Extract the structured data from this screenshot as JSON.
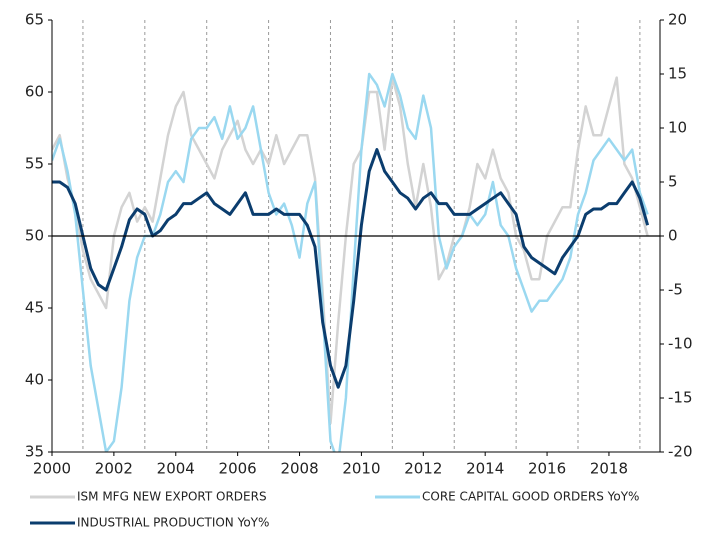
{
  "chart_data": {
    "type": "line",
    "x": [
      2000,
      2000.25,
      2000.5,
      2000.75,
      2001,
      2001.25,
      2001.5,
      2001.75,
      2002,
      2002.25,
      2002.5,
      2002.75,
      2003,
      2003.25,
      2003.5,
      2003.75,
      2004,
      2004.25,
      2004.5,
      2004.75,
      2005,
      2005.25,
      2005.5,
      2005.75,
      2006,
      2006.25,
      2006.5,
      2006.75,
      2007,
      2007.25,
      2007.5,
      2007.75,
      2008,
      2008.25,
      2008.5,
      2008.75,
      2009,
      2009.25,
      2009.5,
      2009.75,
      2010,
      2010.25,
      2010.5,
      2010.75,
      2011,
      2011.25,
      2011.5,
      2011.75,
      2012,
      2012.25,
      2012.5,
      2012.75,
      2013,
      2013.25,
      2013.5,
      2013.75,
      2014,
      2014.25,
      2014.5,
      2014.75,
      2015,
      2015.25,
      2015.5,
      2015.75,
      2016,
      2016.25,
      2016.5,
      2016.75,
      2017,
      2017.25,
      2017.5,
      2017.75,
      2018,
      2018.25,
      2018.5,
      2018.75,
      2019,
      2019.25
    ],
    "series": [
      {
        "name": "ISM MFG NEW EXPORT ORDERS",
        "color": "#d3d3d3",
        "axis": "y",
        "values": [
          56,
          57,
          54,
          52,
          49,
          47,
          46,
          45,
          50,
          52,
          53,
          51,
          52,
          51,
          54,
          57,
          59,
          60,
          57,
          56,
          55,
          54,
          56,
          57,
          58,
          56,
          55,
          56,
          55,
          57,
          55,
          56,
          57,
          57,
          54,
          46,
          37,
          44,
          50,
          55,
          56,
          60,
          60,
          56,
          61,
          59,
          55,
          52,
          55,
          52,
          47,
          48,
          50,
          50,
          52,
          55,
          54,
          56,
          54,
          53,
          50,
          49,
          47,
          47,
          50,
          51,
          52,
          52,
          56,
          59,
          57,
          57,
          59,
          61,
          55,
          54,
          52,
          50
        ]
      },
      {
        "name": "CORE CAPITAL GOOD ORDERS YoY%",
        "color": "#9ad8f0",
        "axis": "y2",
        "values": [
          7,
          9,
          6,
          2,
          -5,
          -12,
          -16,
          -20,
          -19,
          -14,
          -6,
          -2,
          0,
          0,
          2,
          5,
          6,
          5,
          9,
          10,
          10,
          11,
          9,
          12,
          9,
          10,
          12,
          8,
          4,
          2,
          3,
          1,
          -2,
          3,
          5,
          -7,
          -19,
          -21,
          -15,
          -3,
          8,
          15,
          14,
          12,
          15,
          13,
          10,
          9,
          13,
          10,
          0,
          -3,
          -1,
          0,
          2,
          1,
          2,
          5,
          1,
          0,
          -3,
          -5,
          -7,
          -6,
          -6,
          -5,
          -4,
          -2,
          2,
          4,
          7,
          8,
          9,
          8,
          7,
          8,
          4,
          2
        ]
      },
      {
        "name": "INDUSTRIAL PRODUCTION YoY%",
        "color": "#0b3d6e",
        "axis": "y2",
        "values": [
          5,
          5,
          4.5,
          3,
          0,
          -3,
          -4.5,
          -5,
          -3,
          -1,
          1.5,
          2.5,
          2,
          0,
          0.5,
          1.5,
          2,
          3,
          3,
          3.5,
          4,
          3,
          2.5,
          2,
          3,
          4,
          2,
          2,
          2,
          2.5,
          2,
          2,
          2,
          1,
          -1,
          -8,
          -12,
          -14,
          -12,
          -6,
          1,
          6,
          8,
          6,
          5,
          4,
          3.5,
          2.5,
          3.5,
          4,
          3,
          3,
          2,
          2,
          2,
          2.5,
          3,
          3.5,
          4,
          3,
          2,
          -1,
          -2,
          -2.5,
          -3,
          -3.5,
          -2,
          -1,
          0,
          2,
          2.5,
          2.5,
          3,
          3,
          4,
          5,
          3.5,
          1
        ]
      }
    ],
    "xlim": [
      2000,
      2019.65
    ],
    "xticks": [
      2000,
      2002,
      2004,
      2006,
      2008,
      2010,
      2012,
      2014,
      2016,
      2018
    ],
    "x_minor_grid": [
      2001,
      2003,
      2005,
      2007,
      2009,
      2011,
      2013,
      2015,
      2017,
      2019
    ],
    "ylim": [
      35,
      65
    ],
    "yticks": [
      35,
      40,
      45,
      50,
      55,
      60,
      65
    ],
    "y2lim": [
      -20,
      20
    ],
    "y2ticks": [
      -20,
      -15,
      -10,
      -5,
      0,
      5,
      10,
      15,
      20
    ],
    "zero_line": 50
  }
}
